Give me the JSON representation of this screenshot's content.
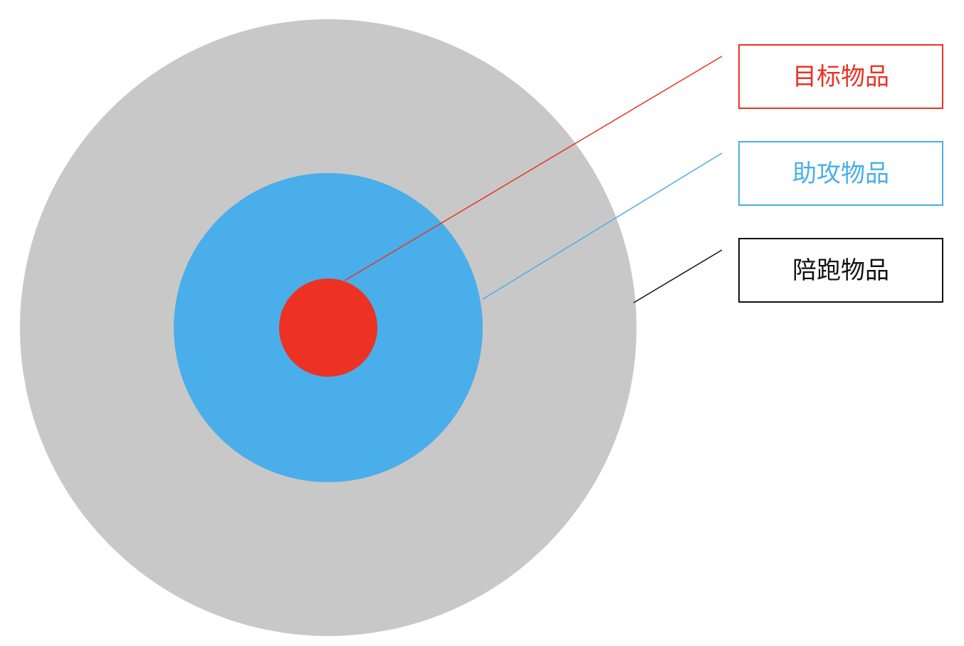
{
  "diagram": {
    "rings": [
      {
        "id": "accompany",
        "color": "#c8c8c8"
      },
      {
        "id": "assist",
        "color": "#4aaeea"
      },
      {
        "id": "target",
        "color": "#ec3223"
      }
    ],
    "labels": [
      {
        "id": "target",
        "text": "目标物品",
        "color": "#ec3223"
      },
      {
        "id": "assist",
        "text": "助攻物品",
        "color": "#4aaeea"
      },
      {
        "id": "accompany",
        "text": "陪跑物品",
        "color": "#111111"
      }
    ]
  }
}
